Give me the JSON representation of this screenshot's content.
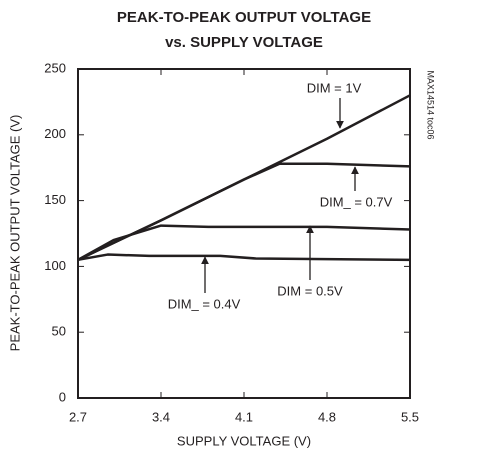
{
  "chart_data": {
    "type": "line",
    "title": [
      "PEAK-TO-PEAK OUTPUT VOLTAGE",
      "vs. SUPPLY VOLTAGE"
    ],
    "x_label": "SUPPLY VOLTAGE (V)",
    "y_label": "PEAK-TO-PEAK OUTPUT VOLTAGE (V)",
    "side_note": "MAX14514 toc06",
    "xlim": [
      2.7,
      5.5
    ],
    "xticks": [
      2.7,
      3.4,
      4.1,
      4.8,
      5.5
    ],
    "ylim": [
      0,
      250
    ],
    "yticks": [
      0,
      50,
      100,
      150,
      200,
      250
    ],
    "grid": false,
    "series": [
      {
        "name": "DIM = 1V",
        "color": "#231f20",
        "x": [
          2.7,
          3.4,
          4.1,
          4.8,
          5.5
        ],
        "values": [
          105,
          135,
          166,
          197,
          230
        ]
      },
      {
        "name": "DIM_ = 0.7V",
        "color": "#231f20",
        "x": [
          2.7,
          3.4,
          4.1,
          4.4,
          4.8,
          5.5
        ],
        "values": [
          105,
          135,
          166,
          178,
          178,
          176
        ]
      },
      {
        "name": "DIM = 0.5V",
        "color": "#231f20",
        "x": [
          2.7,
          3.0,
          3.4,
          3.8,
          4.8,
          5.5
        ],
        "values": [
          105,
          120,
          131,
          130,
          130,
          128
        ]
      },
      {
        "name": "DIM_ = 0.4V",
        "color": "#231f20",
        "x": [
          2.7,
          2.95,
          3.3,
          3.9,
          4.2,
          5.5
        ],
        "values": [
          105,
          109,
          108,
          108,
          106,
          105
        ]
      }
    ]
  }
}
